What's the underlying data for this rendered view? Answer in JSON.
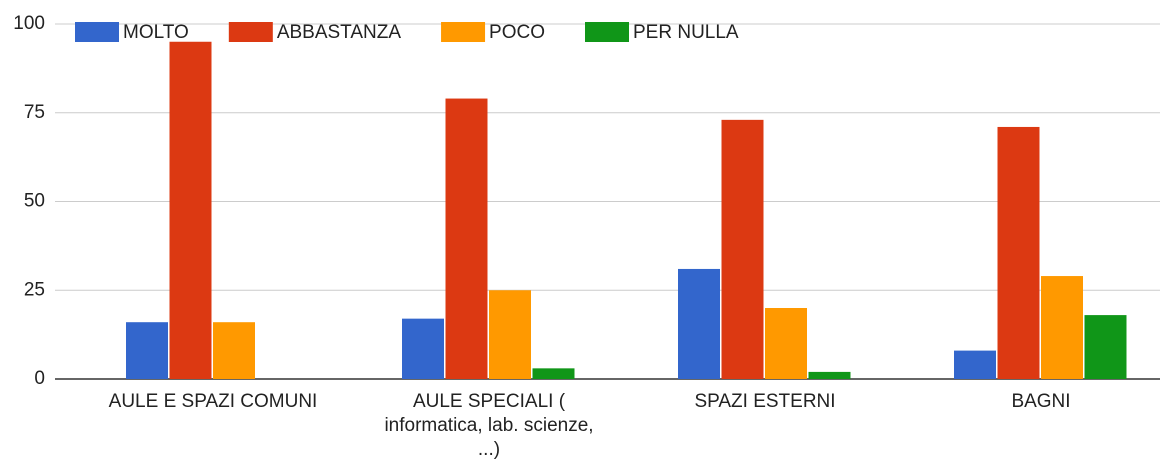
{
  "chart_data": {
    "type": "bar",
    "categories": [
      "AULE E SPAZI COMUNI",
      "AULE SPECIALI ( informatica, lab. scienze, ...)",
      "SPAZI ESTERNI",
      "BAGNI"
    ],
    "series": [
      {
        "name": "MOLTO",
        "color": "#3366cc",
        "values": [
          16,
          17,
          31,
          8
        ]
      },
      {
        "name": "ABBASTANZA",
        "color": "#dc3912",
        "values": [
          95,
          79,
          73,
          71
        ]
      },
      {
        "name": "POCO",
        "color": "#ff9900",
        "values": [
          16,
          25,
          20,
          29
        ]
      },
      {
        "name": "PER NULLA",
        "color": "#109618",
        "values": [
          0,
          3,
          2,
          18
        ]
      }
    ],
    "ylim": [
      0,
      100
    ],
    "yticks": [
      0,
      25,
      50,
      75,
      100
    ],
    "grid": true,
    "legend": "top"
  }
}
